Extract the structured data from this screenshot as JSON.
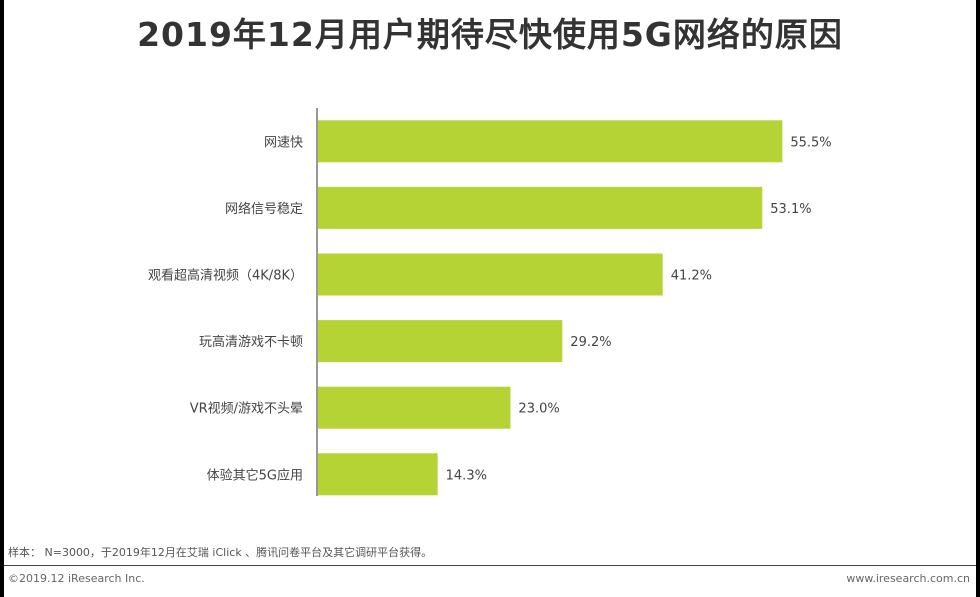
{
  "title": "2019年12月用户期待尽快使用5G网络的原因",
  "chart_data": {
    "type": "bar",
    "orientation": "horizontal",
    "categories": [
      "网速快",
      "网络信号稳定",
      "观看超高清视频（4K/8K）",
      "玩高清游戏不卡顿",
      "VR视频/游戏不头晕",
      "体验其它5G应用"
    ],
    "values": [
      55.5,
      53.1,
      41.2,
      29.2,
      23.0,
      14.3
    ],
    "value_labels": [
      "55.5%",
      "53.1%",
      "41.2%",
      "29.2%",
      "23.0%",
      "14.3%"
    ],
    "value_unit": "%",
    "xlim": [
      0,
      60
    ],
    "grid": false,
    "bar_color": "#b5d334"
  },
  "footer": {
    "note": "样本： N=3000，于2019年12月在艾瑞 iClick 、腾讯问卷平台及其它调研平台获得。",
    "copyright": "©2019.12 iResearch Inc.",
    "website": "www.iresearch.com.cn"
  }
}
